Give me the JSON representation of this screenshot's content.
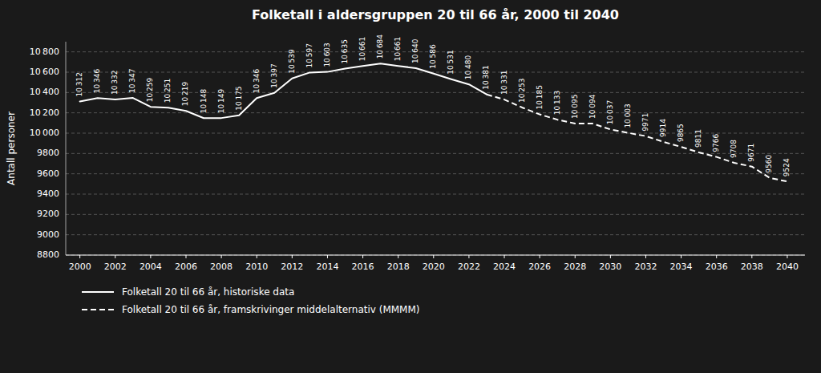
{
  "chart_data": {
    "type": "line",
    "title": "Folketall i aldersgruppen 20 til 66 år, 2000 til 2040",
    "y_label": "Antall personer",
    "x": [
      2000,
      2001,
      2002,
      2003,
      2004,
      2005,
      2006,
      2007,
      2008,
      2009,
      2010,
      2011,
      2012,
      2013,
      2014,
      2015,
      2016,
      2017,
      2018,
      2019,
      2020,
      2021,
      2022,
      2023,
      2024,
      2025,
      2026,
      2027,
      2028,
      2029,
      2030,
      2031,
      2032,
      2033,
      2034,
      2035,
      2036,
      2037,
      2038,
      2039,
      2040
    ],
    "series": [
      {
        "name": "Folketall 20 til 66 år, historiske data",
        "color": "#ffffff",
        "line_style": "solid",
        "values": [
          10312,
          10346,
          10332,
          10347,
          10259,
          10251,
          10219,
          10148,
          10149,
          10175,
          10346,
          10397,
          10539,
          10597,
          10603,
          10635,
          10661,
          10684,
          10661,
          10640,
          10586,
          10531,
          10480,
          10381,
          null,
          null,
          null,
          null,
          null,
          null,
          null,
          null,
          null,
          null,
          null,
          null,
          null,
          null,
          null,
          null,
          null
        ],
        "value_labels": [
          "10 312",
          "10 346",
          "10 332",
          "10 347",
          "10 259",
          "10 251",
          "10 219",
          "10 148",
          "10 149",
          "10 175",
          "10 346",
          "10 397",
          "10 539",
          "10 597",
          "10 603",
          "10 635",
          "10 661",
          "10 684",
          "10 661",
          "10 640",
          "10 586",
          "10 531",
          "10 480",
          "10 381",
          null,
          null,
          null,
          null,
          null,
          null,
          null,
          null,
          null,
          null,
          null,
          null,
          null,
          null,
          null,
          null,
          null
        ]
      },
      {
        "name": "Folketall 20 til 66 år, framskrivinger middelalternativ (MMMM)",
        "color": "#ffffff",
        "line_style": "dashed",
        "values": [
          null,
          null,
          null,
          null,
          null,
          null,
          null,
          null,
          null,
          null,
          null,
          null,
          null,
          null,
          null,
          null,
          null,
          null,
          null,
          null,
          null,
          null,
          null,
          10381,
          10331,
          10253,
          10185,
          10133,
          10095,
          10094,
          10037,
          10003,
          9971,
          9914,
          9865,
          9811,
          9766,
          9708,
          9671,
          9560,
          9524
        ],
        "value_labels": [
          null,
          null,
          null,
          null,
          null,
          null,
          null,
          null,
          null,
          null,
          null,
          null,
          null,
          null,
          null,
          null,
          null,
          null,
          null,
          null,
          null,
          null,
          null,
          null,
          "10 331",
          "10 253",
          "10 185",
          "10 133",
          "10 095",
          "10 094",
          "10 037",
          "10 003",
          "9971",
          "9914",
          "9865",
          "9811",
          "9766",
          "9708",
          "9671",
          "9560",
          "9524"
        ]
      }
    ],
    "xlim": [
      1999.2,
      2041.0
    ],
    "xticks": [
      2000,
      2002,
      2004,
      2006,
      2008,
      2010,
      2012,
      2014,
      2016,
      2018,
      2020,
      2022,
      2024,
      2026,
      2028,
      2030,
      2032,
      2034,
      2036,
      2038,
      2040
    ],
    "ylim": [
      8800,
      10900
    ],
    "yticks": [
      8800,
      9000,
      9200,
      9400,
      9600,
      9800,
      {
        "value": 10000,
        "label": "10 000"
      },
      {
        "value": 10200,
        "label": "10 200"
      },
      {
        "value": 10400,
        "label": "10 400"
      },
      {
        "value": 10600,
        "label": "10 600"
      },
      {
        "value": 10800,
        "label": "10 800"
      }
    ],
    "grid": true,
    "data_labels": true,
    "legend": "bottom"
  }
}
